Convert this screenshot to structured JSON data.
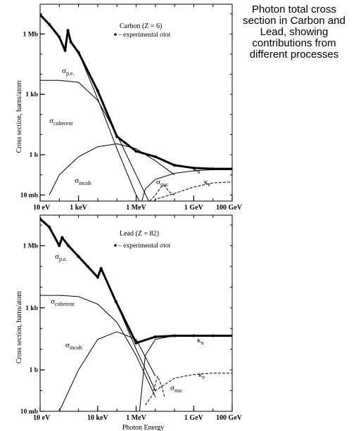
{
  "side_caption": {
    "lines": [
      "Photon total cross",
      "section in Carbon and",
      "Lead, showing",
      "contributions from",
      "different processes"
    ]
  },
  "chart_data": [
    {
      "type": "line",
      "scale": "log-log",
      "title": "Carbon (Z = 6)",
      "legend_text": "experimental σtot",
      "ylabel": "Cross section, barns/atom",
      "x_ticks": [
        "10 eV",
        "1 keV",
        "1 MeV",
        "1 GeV",
        "100 GeV"
      ],
      "x_tick_values_eV": [
        10,
        1000,
        1000000,
        1000000000,
        100000000000
      ],
      "y_ticks": [
        "1 Mb",
        "1 kb",
        "1 b",
        "10 mb"
      ],
      "y_tick_values_b": [
        1000000,
        1000,
        1,
        0.01
      ],
      "xlim_eV": [
        10,
        100000000000
      ],
      "ylim_b": [
        0.005,
        30000000
      ],
      "series": [
        {
          "name": "σp.e.",
          "x": [
            10,
            30,
            100,
            200,
            280,
            400,
            1000,
            10000,
            100000,
            1000000,
            2000000
          ],
          "y": [
            8000000,
            3000000,
            700000,
            150000,
            1500000,
            400000,
            120000,
            600,
            2,
            0.01,
            0.003
          ]
        },
        {
          "name": "σcoherent",
          "x": [
            10,
            100,
            1000,
            10000,
            100000,
            1000000,
            10000000
          ],
          "y": [
            5000,
            5000,
            4000,
            500,
            10,
            0.1,
            0.001
          ]
        },
        {
          "name": "σincoh",
          "x": [
            30,
            100,
            1000,
            10000,
            100000,
            1000000,
            10000000,
            100000000
          ],
          "y": [
            0.01,
            0.1,
            0.8,
            2.5,
            3.5,
            2,
            0.5,
            0.1
          ]
        },
        {
          "name": "σnuc",
          "x": [
            5000000,
            10000000,
            20000000,
            30000000,
            50000000,
            100000000
          ],
          "y": [
            0.005,
            0.01,
            0.025,
            0.03,
            0.015,
            0.01
          ]
        },
        {
          "name": "κn",
          "x": [
            1500000,
            3000000,
            10000000,
            100000000,
            1000000000,
            10000000000,
            100000000000
          ],
          "y": [
            0.002,
            0.02,
            0.06,
            0.12,
            0.16,
            0.18,
            0.18
          ]
        },
        {
          "name": "κe",
          "x": [
            3000000,
            10000000,
            100000000,
            1000000000,
            10000000000,
            100000000000
          ],
          "y": [
            0.001,
            0.006,
            0.012,
            0.025,
            0.04,
            0.045
          ]
        },
        {
          "name": "experimental σtot",
          "x": [
            10,
            30,
            100,
            200,
            280,
            400,
            1000,
            10000,
            100000,
            1000000,
            10000000,
            100000000,
            1000000000,
            10000000000,
            100000000000
          ],
          "y": [
            9000000,
            3000000,
            700000,
            150000,
            1500000,
            400000,
            120000,
            1500,
            8,
            1.5,
            0.8,
            0.3,
            0.22,
            0.2,
            0.2
          ]
        }
      ]
    },
    {
      "type": "line",
      "scale": "log-log",
      "title": "Lead (Z = 82)",
      "legend_text": "experimental σtot",
      "ylabel": "Cross section, barns/atom",
      "xlabel": "Photon Energy",
      "x_ticks": [
        "10 eV",
        "10 keV",
        "1 MeV",
        "1 GeV",
        "100 GeV"
      ],
      "x_tick_values_eV": [
        10,
        10000,
        1000000,
        1000000000,
        100000000000
      ],
      "y_ticks": [
        "1 Mb",
        "1 kb",
        "1 b",
        "10 mb"
      ],
      "y_tick_values_b": [
        1000000,
        1000,
        1,
        0.01
      ],
      "xlim_eV": [
        10,
        100000000000
      ],
      "ylim_b": [
        0.01,
        30000000
      ],
      "series": [
        {
          "name": "σp.e.",
          "x": [
            10,
            30,
            100,
            140,
            300,
            1000,
            3000,
            10000,
            15000,
            88000,
            1000000,
            10000000
          ],
          "y": [
            20000000,
            8000000,
            1000000,
            2500000,
            1000000,
            300000,
            100000,
            30000,
            80000,
            2000,
            10,
            0.1
          ]
        },
        {
          "name": "σcoherent",
          "x": [
            10,
            100,
            1000,
            10000,
            100000,
            1000000,
            10000000
          ],
          "y": [
            4000,
            4000,
            3500,
            1500,
            200,
            5,
            0.05
          ]
        },
        {
          "name": "σincoh",
          "x": [
            100,
            1000,
            10000,
            100000,
            1000000,
            10000000
          ],
          "y": [
            0.01,
            1,
            30,
            70,
            30,
            0.5
          ]
        },
        {
          "name": "σnuc",
          "x": [
            8000000,
            13000000,
            20000000,
            30000000
          ],
          "y": [
            0.1,
            0.5,
            0.2,
            0.05
          ]
        },
        {
          "name": "κn",
          "x": [
            1500000,
            3000000,
            10000000,
            100000000,
            1000000000,
            10000000000,
            100000000000
          ],
          "y": [
            0.01,
            5,
            30,
            45,
            45,
            45,
            45
          ]
        },
        {
          "name": "κe",
          "x": [
            3000000,
            10000000,
            100000000,
            1000000000,
            10000000000,
            100000000000
          ],
          "y": [
            0.02,
            0.1,
            0.4,
            0.6,
            0.7,
            0.7
          ]
        },
        {
          "name": "experimental σtot",
          "x": [
            10,
            30,
            100,
            140,
            300,
            1000,
            3000,
            10000,
            15000,
            88000,
            1000000,
            10000000,
            100000000,
            1000000000,
            10000000000,
            100000000000
          ],
          "y": [
            20000000,
            8000000,
            1000000,
            2500000,
            1000000,
            300000,
            100000,
            30000,
            80000,
            2000,
            20,
            40,
            45,
            45,
            45,
            45
          ]
        }
      ]
    }
  ]
}
